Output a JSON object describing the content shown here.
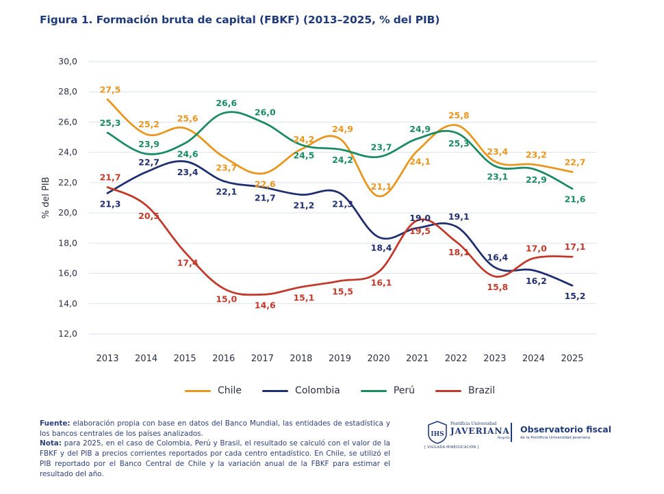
{
  "figure": {
    "title": "Figura 1. Formación bruta de capital (FBKF) (2013–2025, % del PIB)"
  },
  "chart_data": {
    "type": "line",
    "title": "Figura 1. Formación bruta de capital (FBKF) (2013–2025, % del PIB)",
    "xlabel": "",
    "ylabel": "% del PIB",
    "categories": [
      "2013",
      "2014",
      "2015",
      "2016",
      "2017",
      "2018",
      "2019",
      "2020",
      "2021",
      "2022",
      "2023",
      "2024",
      "2025"
    ],
    "ylim": [
      12,
      30
    ],
    "yticks": [
      "12,0",
      "14,0",
      "16,0",
      "18,0",
      "20,0",
      "22,0",
      "24,0",
      "26,0",
      "28,0",
      "30,0"
    ],
    "grid": true,
    "legend_position": "bottom",
    "series": [
      {
        "name": "Chile",
        "color": "#E8961E",
        "values": [
          27.5,
          25.2,
          25.6,
          23.7,
          22.6,
          24.2,
          24.9,
          21.1,
          24.1,
          25.8,
          23.4,
          23.2,
          22.7
        ],
        "labels": [
          "27,5",
          "25,2",
          "25,6",
          "23,7",
          "22,6",
          "24,2",
          "24,9",
          "21,1",
          "24,1",
          "25,8",
          "23,4",
          "23,2",
          "22,7"
        ],
        "label_pos": [
          "above",
          "above",
          "above",
          "below",
          "below",
          "above",
          "above",
          "above",
          "below",
          "above",
          "above",
          "above",
          "above"
        ]
      },
      {
        "name": "Colombia",
        "color": "#1F2E6E",
        "values": [
          21.3,
          22.7,
          23.4,
          22.1,
          21.7,
          21.2,
          21.3,
          18.4,
          19.0,
          19.1,
          16.4,
          16.2,
          15.2
        ],
        "labels": [
          "21,3",
          "22,7",
          "23,4",
          "22,1",
          "21,7",
          "21,2",
          "21,3",
          "18,4",
          "19,0",
          "19,1",
          "16,4",
          "16,2",
          "15,2"
        ],
        "label_pos": [
          "below",
          "above",
          "below",
          "below",
          "below",
          "below",
          "below",
          "below",
          "above",
          "above",
          "above",
          "below",
          "below"
        ]
      },
      {
        "name": "Perú",
        "color": "#1A8A63",
        "values": [
          25.3,
          23.9,
          24.6,
          26.6,
          26.0,
          24.5,
          24.2,
          23.7,
          24.9,
          25.3,
          23.1,
          22.9,
          21.6
        ],
        "labels": [
          "25,3",
          "23,9",
          "24,6",
          "26,6",
          "26,0",
          "24,5",
          "24,2",
          "23,7",
          "24,9",
          "25,3",
          "23,1",
          "22,9",
          "21,6"
        ],
        "label_pos": [
          "above",
          "above",
          "below",
          "above",
          "above",
          "below",
          "below",
          "above",
          "above",
          "below",
          "below",
          "below",
          "below"
        ]
      },
      {
        "name": "Brazil",
        "color": "#C0392B",
        "values": [
          21.7,
          20.5,
          17.4,
          15.0,
          14.6,
          15.1,
          15.5,
          16.1,
          19.5,
          18.1,
          15.8,
          17.0,
          17.1
        ],
        "labels": [
          "21,7",
          "20,5",
          "17,4",
          "15,0",
          "14,6",
          "15,1",
          "15,5",
          "16,1",
          "19,5",
          "18,1",
          "15,8",
          "17,0",
          "17,1"
        ],
        "label_pos": [
          "above",
          "below",
          "below",
          "below",
          "below",
          "below",
          "below",
          "below",
          "below",
          "below",
          "below",
          "above",
          "above"
        ]
      }
    ]
  },
  "notes": {
    "fuente_label": "Fuente:",
    "fuente_text": " elaboración propia con base en datos del Banco Mundial, las entidades de estadística y los bancos centrales de los países analizados.",
    "nota_label": "Nota:",
    "nota_text": " para 2025, en el caso de Colombia, Perú y Brasil, el resultado se calculó con el valor de la FBKF y del PIB a precios corrientes reportados por cada centro entadístico. En Chile, se utilizó el PIB reportado por el Banco Central de Chile y la variación anual de la FBKF para estimar el resultado del año."
  },
  "logos": {
    "pu_small": "Pontificia Universidad",
    "pu_big": "JAVERIANA",
    "pu_city": "Bogotá",
    "pu_motto": "[ VIGILADA MINEDUCACIÓN ]",
    "observatorio_title": "Observatorio fiscal",
    "observatorio_sub": "de la Pontificia Universidad Javeriana"
  }
}
